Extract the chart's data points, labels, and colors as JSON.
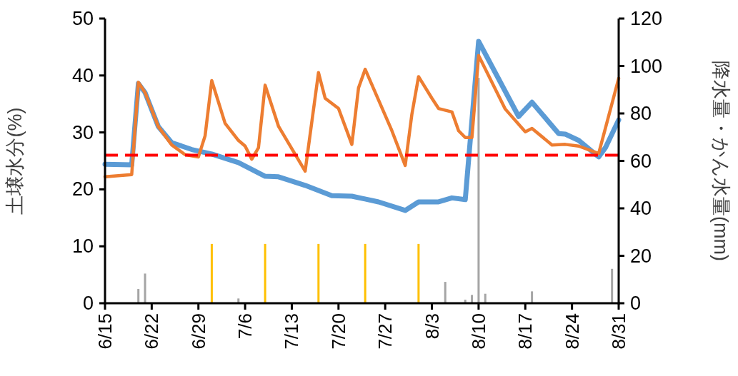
{
  "chart_data": {
    "type": "line",
    "ylabel": "土壌水分(%)",
    "y2label": "降水量・かん水量(mm)",
    "xlim": [
      "--06-15",
      "--08-31"
    ],
    "xticks": [
      {
        "value": "--06-15",
        "label": "6/15"
      },
      {
        "value": "--06-22",
        "label": "6/22"
      },
      {
        "value": "--06-29",
        "label": "6/29"
      },
      {
        "value": "--07-06",
        "label": "7/6"
      },
      {
        "value": "--07-13",
        "label": "7/13"
      },
      {
        "value": "--07-20",
        "label": "7/20"
      },
      {
        "value": "--07-27",
        "label": "7/27"
      },
      {
        "value": "--08-03",
        "label": "8/3"
      },
      {
        "value": "--08-10",
        "label": "8/10"
      },
      {
        "value": "--08-17",
        "label": "8/17"
      },
      {
        "value": "--08-24",
        "label": "8/24"
      },
      {
        "value": "--08-31",
        "label": "8/31"
      }
    ],
    "ylim": [
      0,
      50
    ],
    "yticks": [
      0,
      10,
      20,
      30,
      40,
      50
    ],
    "y2lim": [
      0,
      120
    ],
    "y2ticks": [
      0,
      20,
      40,
      60,
      80,
      100,
      120
    ],
    "series": [
      {
        "type": "bar",
        "axis": "y2",
        "color": "#a5a5a5",
        "x": [
          "--06-20",
          "--06-21",
          "--07-05",
          "--08-05",
          "--08-08",
          "--08-09",
          "--08-10",
          "--08-11",
          "--08-18",
          "--08-30"
        ],
        "values": [
          6,
          12.5,
          2,
          9,
          1.5,
          3.5,
          95,
          4,
          5,
          14.5
        ]
      },
      {
        "type": "bar",
        "axis": "y2",
        "color": "#ffc000",
        "x": [
          "--07-01",
          "--07-09",
          "--07-17",
          "--07-24",
          "--08-01"
        ],
        "values": [
          25,
          25,
          25,
          25,
          25
        ]
      },
      {
        "color": "#5b9bd5",
        "x": [
          "--06-15",
          "--06-19",
          "--06-20",
          "--06-21",
          "--06-23",
          "--06-25",
          "--06-28",
          "--07-01",
          "--07-05",
          "--07-09",
          "--07-11",
          "--07-15",
          "--07-19",
          "--07-22",
          "--07-26",
          "--07-30",
          "--08-01",
          "--08-04",
          "--08-06",
          "--08-08",
          "--08-10",
          "--08-16",
          "--08-18",
          "--08-22",
          "--08-23",
          "--08-25",
          "--08-28",
          "--08-29",
          "--08-31"
        ],
        "values": [
          24.4,
          24.3,
          38.6,
          37,
          31,
          28.2,
          27,
          26.2,
          24.7,
          22.3,
          22.2,
          20.7,
          18.9,
          18.8,
          17.8,
          16.3,
          17.8,
          17.8,
          18.5,
          18.2,
          46,
          32.8,
          35.3,
          29.8,
          29.7,
          28.6,
          25.7,
          27.3,
          32.2
        ]
      },
      {
        "color": "#ed7d31",
        "x": [
          "--06-15",
          "--06-19",
          "--06-20",
          "--06-21",
          "--06-23",
          "--06-25",
          "--06-27",
          "--06-29",
          "--06-30",
          "--07-01",
          "--07-03",
          "--07-05",
          "--07-06",
          "--07-07",
          "--07-08",
          "--07-09",
          "--07-11",
          "--07-15",
          "--07-17",
          "--07-18",
          "--07-20",
          "--07-22",
          "--07-23",
          "--07-24",
          "--07-26",
          "--07-28",
          "--07-30",
          "--07-31",
          "--08-01",
          "--08-03",
          "--08-04",
          "--08-06",
          "--08-07",
          "--08-08",
          "--08-09",
          "--08-10",
          "--08-14",
          "--08-17",
          "--08-18",
          "--08-21",
          "--08-23",
          "--08-25",
          "--08-28",
          "--08-31"
        ],
        "values": [
          22.2,
          22.6,
          38.8,
          37,
          31,
          27.8,
          26.1,
          25.7,
          29.4,
          39.1,
          31.6,
          28.6,
          27.6,
          25.3,
          27.3,
          38.3,
          31.1,
          23.2,
          40.5,
          36,
          34.2,
          27.9,
          37.8,
          41.1,
          35.7,
          30.3,
          24.2,
          33.2,
          39.8,
          36,
          34.2,
          33.6,
          30.3,
          29.1,
          29.1,
          43.5,
          34.1,
          30.1,
          30.7,
          27.8,
          27.9,
          27.6,
          26.3,
          39.5
        ]
      }
    ],
    "ref_lines": [
      {
        "axis": "y",
        "value": 26,
        "color": "#ff0000",
        "line_style": "dashed"
      }
    ]
  }
}
